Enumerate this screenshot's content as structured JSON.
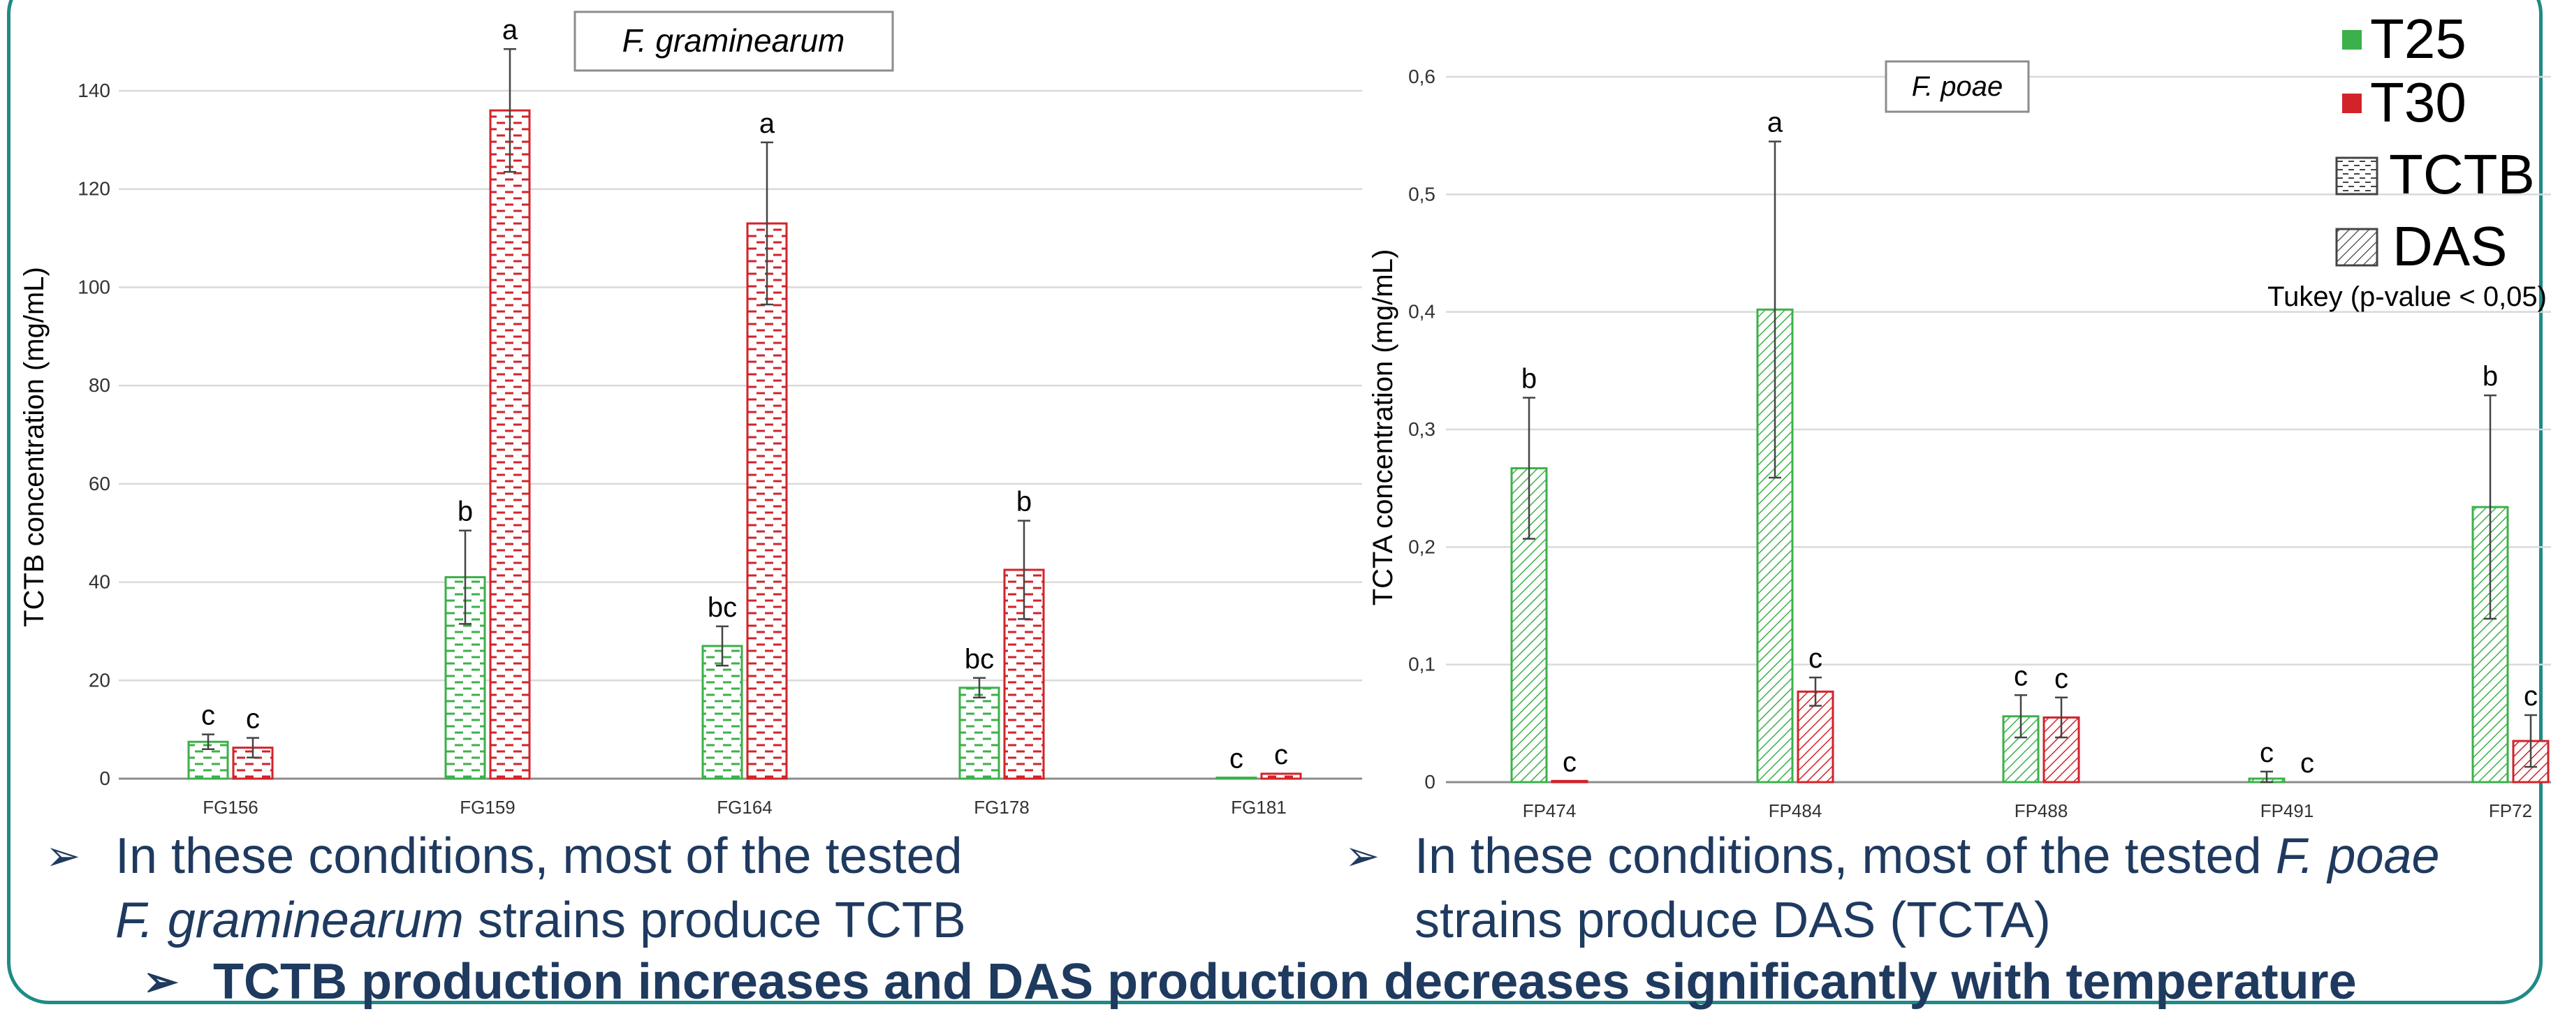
{
  "colors": {
    "t25": "#3cb04a",
    "t30": "#d2232a",
    "text": "#1f3a5f",
    "frame": "#1f8a87",
    "grid": "#d9d9d9",
    "axis": "#595959"
  },
  "legend": {
    "items": [
      {
        "label": "T25",
        "kind": "solid",
        "color": "#3cb04a"
      },
      {
        "label": "T30",
        "kind": "solid",
        "color": "#d2232a"
      },
      {
        "label": "TCTB",
        "kind": "dash"
      },
      {
        "label": "DAS",
        "kind": "hatch"
      }
    ],
    "tukey_note": "Tukey (p-value < 0,05)"
  },
  "chart_data": [
    {
      "type": "bar",
      "title": "F. graminearum",
      "xlabel": "",
      "ylabel": "TCTB concentration (mg/mL)",
      "ylim": [
        0,
        140
      ],
      "yticks": [
        "0",
        "20",
        "40",
        "60",
        "80",
        "100",
        "120",
        "140"
      ],
      "ytick_values": [
        0,
        20,
        40,
        60,
        80,
        100,
        120,
        140
      ],
      "grid": true,
      "pattern": "dash",
      "categories": [
        "FG156",
        "FG159",
        "FG164",
        "FG178",
        "FG181"
      ],
      "series": [
        {
          "name": "T25",
          "values": [
            7.5,
            41,
            27,
            18.5,
            0.2
          ],
          "errors": [
            1.5,
            9.5,
            4,
            2,
            0
          ],
          "letters": [
            "c",
            "b",
            "bc",
            "bc",
            "c"
          ]
        },
        {
          "name": "T30",
          "values": [
            6.3,
            136,
            113,
            42.5,
            1
          ],
          "errors": [
            2,
            12.5,
            16.5,
            10,
            0
          ],
          "letters": [
            "c",
            "a",
            "a",
            "b",
            "c"
          ]
        }
      ]
    },
    {
      "type": "bar",
      "title": "F. poae",
      "xlabel": "",
      "ylabel": "TCTA concentration (mg/mL)",
      "ylim": [
        0,
        0.6
      ],
      "yticks": [
        "0",
        "0,1",
        "0,2",
        "0,3",
        "0,4",
        "0,5",
        "0,6"
      ],
      "ytick_values": [
        0,
        0.1,
        0.2,
        0.3,
        0.4,
        0.5,
        0.6
      ],
      "grid": true,
      "pattern": "hatch",
      "categories": [
        "FP474",
        "FP484",
        "FP488",
        "FP491",
        "FP72"
      ],
      "series": [
        {
          "name": "T25",
          "values": [
            0.267,
            0.402,
            0.056,
            0.003,
            0.234
          ],
          "errors": [
            0.06,
            0.143,
            0.018,
            0.006,
            0.095
          ],
          "letters": [
            "b",
            "a",
            "c",
            "c",
            "b"
          ]
        },
        {
          "name": "T30",
          "values": [
            0.001,
            0.077,
            0.055,
            0,
            0.035
          ],
          "errors": [
            0,
            0.012,
            0.017,
            0,
            0.022
          ],
          "letters": [
            "c",
            "c",
            "c",
            "c",
            "c"
          ]
        }
      ]
    }
  ],
  "bullets": {
    "left_line1": "In these conditions, most of the tested",
    "left_line2_italic": "F. graminearum",
    "left_line2_rest": " strains produce TCTB",
    "right_line1_plain": "In these conditions, most of the tested ",
    "right_line1_italic": "F. poae",
    "right_line2": "strains produce DAS (TCTA)",
    "conclusion": "TCTB production increases and DAS production decreases significantly with temperature"
  }
}
